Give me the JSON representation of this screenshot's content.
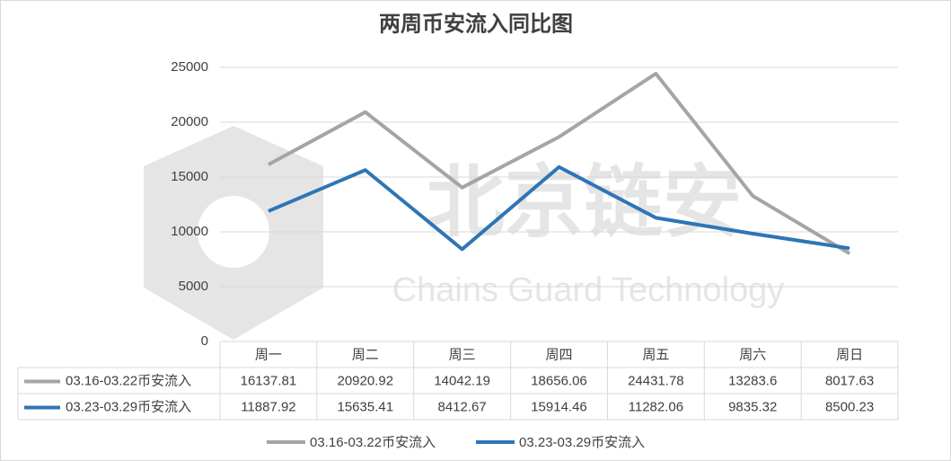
{
  "chart_data": {
    "type": "line",
    "title": "两周币安流入同比图",
    "categories": [
      "周一",
      "周二",
      "周三",
      "周四",
      "周五",
      "周六",
      "周日"
    ],
    "series": [
      {
        "name": "03.16-03.22币安流入",
        "color": "#a5a5a5",
        "values": [
          16137.81,
          20920.92,
          14042.19,
          18656.06,
          24431.78,
          13283.6,
          8017.63
        ]
      },
      {
        "name": "03.23-03.29币安流入",
        "color": "#2e75b6",
        "values": [
          11887.92,
          15635.41,
          8412.67,
          15914.46,
          11282.06,
          9835.32,
          8500.23
        ]
      }
    ],
    "ylim": [
      0,
      25000
    ],
    "yticks": [
      0,
      5000,
      10000,
      15000,
      20000,
      25000
    ],
    "grid": true,
    "data_table": true,
    "legend": "bottom",
    "watermark": [
      "北京链安",
      "Chains Guard Technology"
    ]
  }
}
